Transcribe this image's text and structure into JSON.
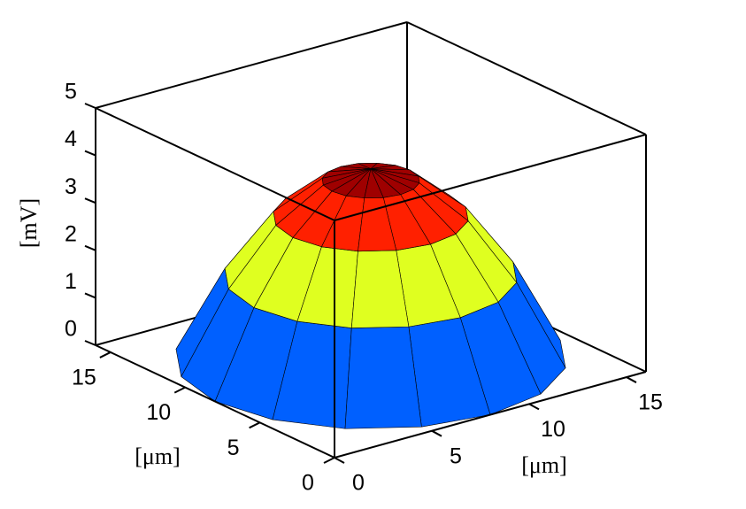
{
  "chart_data": {
    "type": "surface",
    "xlabel": "[μm]",
    "ylabel": "[μm]",
    "zlabel": "[mV]",
    "colormap": "jet",
    "edgecolor": "#000000",
    "xlim": [
      0,
      16
    ],
    "ylim": [
      0,
      16
    ],
    "zlim": [
      0,
      5
    ],
    "xticks": [
      0,
      5,
      10,
      15
    ],
    "yticks": [
      0,
      5,
      10,
      15
    ],
    "zticks": [
      0,
      1,
      2,
      3,
      4,
      5
    ],
    "x": [
      [
        8,
        8,
        8,
        8,
        8,
        8,
        8,
        8,
        8,
        8,
        8,
        8,
        8,
        8,
        8,
        8
      ],
      [
        10,
        9.85,
        9.41,
        8.77,
        8,
        7.23,
        6.59,
        6.15,
        6,
        6.15,
        6.59,
        7.23,
        8,
        8.77,
        9.41,
        9.85
      ],
      [
        12,
        11.7,
        10.83,
        9.53,
        8,
        6.47,
        5.17,
        4.3,
        4,
        4.3,
        5.17,
        6.47,
        8,
        9.53,
        10.83,
        11.7
      ],
      [
        14,
        13.54,
        12.24,
        10.3,
        8,
        5.7,
        3.76,
        2.46,
        2,
        2.46,
        3.76,
        5.7,
        8,
        10.3,
        12.24,
        13.54
      ],
      [
        16,
        15.39,
        13.66,
        11.06,
        8,
        4.94,
        2.34,
        0.61,
        0,
        0.61,
        2.34,
        4.94,
        8,
        11.06,
        13.66,
        15.39
      ]
    ],
    "y": [
      [
        8,
        8,
        8,
        8,
        8,
        8,
        8,
        8,
        8,
        8,
        8,
        8,
        8,
        8,
        8,
        8
      ],
      [
        8,
        8.77,
        9.41,
        9.85,
        10,
        9.85,
        9.41,
        8.77,
        8,
        7.23,
        6.59,
        6.15,
        6,
        6.15,
        6.59,
        7.23
      ],
      [
        8,
        9.53,
        10.83,
        11.7,
        12,
        11.7,
        10.83,
        9.53,
        8,
        6.47,
        5.17,
        4.3,
        4,
        4.3,
        5.17,
        6.47
      ],
      [
        8,
        10.3,
        12.24,
        13.54,
        14,
        13.54,
        12.24,
        10.3,
        8,
        5.7,
        3.76,
        2.46,
        2,
        2.46,
        3.76,
        5.7
      ],
      [
        8,
        11.06,
        13.66,
        15.39,
        16,
        15.39,
        13.66,
        11.06,
        8,
        4.94,
        2.34,
        0.61,
        0,
        0.61,
        2.34,
        4.94
      ]
    ],
    "z": [
      [
        4,
        4,
        4,
        4,
        4,
        4,
        4,
        4,
        4,
        4,
        4,
        4,
        4,
        4,
        4,
        4
      ],
      [
        3.75,
        3.75,
        3.75,
        3.75,
        3.75,
        3.75,
        3.75,
        3.75,
        3.75,
        3.75,
        3.75,
        3.75,
        3.75,
        3.75,
        3.75,
        3.75
      ],
      [
        3,
        3,
        3,
        3,
        3,
        3,
        3,
        3,
        3,
        3,
        3,
        3,
        3,
        3,
        3,
        3
      ],
      [
        1.75,
        1.75,
        1.75,
        1.75,
        1.75,
        1.75,
        1.75,
        1.75,
        1.75,
        1.75,
        1.75,
        1.75,
        1.75,
        1.75,
        1.75,
        1.75
      ],
      [
        0,
        0,
        0,
        0,
        0,
        0,
        0,
        0,
        0,
        0,
        0,
        0,
        0,
        0,
        0,
        0
      ]
    ]
  }
}
